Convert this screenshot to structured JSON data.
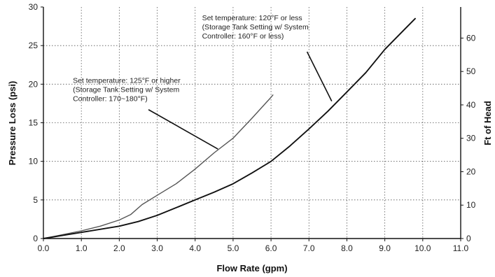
{
  "chart_data": {
    "type": "line",
    "title": "",
    "xlabel": "Flow Rate (gpm)",
    "ylabel": "Pressure Loss (psi)",
    "y2label": "Ft of Head",
    "xlim": [
      0,
      11
    ],
    "ylim": [
      0,
      30
    ],
    "y2lim": [
      0,
      69.3
    ],
    "x_ticks": [
      "0.0",
      "1.0",
      "2.0",
      "3.0",
      "4.0",
      "5.0",
      "6.0",
      "7.0",
      "8.0",
      "9.0",
      "10.0",
      "11.0"
    ],
    "y_ticks": [
      "0",
      "5",
      "10",
      "15",
      "20",
      "25",
      "30"
    ],
    "y2_ticks": [
      "0",
      "10",
      "20",
      "30",
      "40",
      "50",
      "60"
    ],
    "grid": true,
    "series": [
      {
        "color": "#555555",
        "x": [
          0,
          0.5,
          1.0,
          1.5,
          2.0,
          2.3,
          2.6,
          3.0,
          3.5,
          4.0,
          4.5,
          5.0,
          5.5,
          6.0,
          6.05
        ],
        "y": [
          0,
          0.5,
          1.0,
          1.6,
          2.4,
          3.1,
          4.4,
          5.6,
          7.1,
          9.0,
          11.1,
          13.0,
          15.6,
          18.3,
          18.6
        ]
      },
      {
        "color": "#111111",
        "x": [
          0,
          0.5,
          1.0,
          2.0,
          2.5,
          3.0,
          3.5,
          4.0,
          4.5,
          5.0,
          5.5,
          6.0,
          6.5,
          7.0,
          7.5,
          8.0,
          8.5,
          9.0,
          9.5,
          9.8
        ],
        "y": [
          0,
          0.4,
          0.8,
          1.6,
          2.2,
          3.0,
          4.0,
          5.0,
          6.0,
          7.1,
          8.5,
          10.0,
          12.0,
          14.2,
          16.5,
          19.0,
          21.5,
          24.5,
          27.0,
          28.5
        ]
      }
    ],
    "annotations": [
      {
        "lines": [
          "Set temperature: 125°F or higher",
          "(Storage Tank Setting w/ System",
          "Controller: 170~180°F)"
        ],
        "target_series": 0,
        "target": [
          4.6,
          11.6
        ],
        "anchor": [
          2.77,
          16.7
        ]
      },
      {
        "lines": [
          "Set temperature: 120°F or less",
          "(Storage Tank Setting w/ System",
          "Controller: 160°F or less)"
        ],
        "target_series": 1,
        "target": [
          7.6,
          17.8
        ],
        "anchor": [
          6.95,
          24.2
        ]
      }
    ]
  }
}
